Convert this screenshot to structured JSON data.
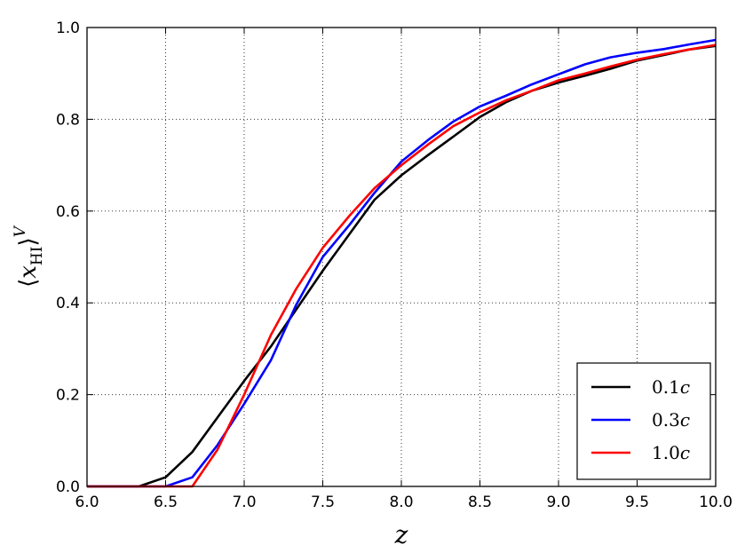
{
  "chart_data": {
    "type": "line",
    "xlabel": "z",
    "ylabel": "⟨x_HI⟩^V",
    "ylabel_parts": {
      "open": "⟨",
      "x": "x",
      "sub": "HI",
      "close": "⟩",
      "sup": "V"
    },
    "xlim": [
      6.0,
      10.0
    ],
    "ylim": [
      0.0,
      1.0
    ],
    "xticks": [
      "6.0",
      "6.5",
      "7.0",
      "7.5",
      "8.0",
      "8.5",
      "9.0",
      "9.5",
      "10.0"
    ],
    "yticks": [
      "0.0",
      "0.2",
      "0.4",
      "0.6",
      "0.8",
      "1.0"
    ],
    "grid": true,
    "grid_style": "dotted",
    "legend_position": "lower-right",
    "series": [
      {
        "name": "0.1c",
        "color": "#000000",
        "x": [
          6.0,
          6.33,
          6.5,
          6.67,
          6.83,
          7.0,
          7.17,
          7.33,
          7.5,
          7.67,
          7.83,
          8.0,
          8.17,
          8.33,
          8.5,
          8.67,
          8.83,
          9.0,
          9.17,
          9.33,
          9.5,
          9.67,
          9.83,
          10.0
        ],
        "y": [
          0.0,
          0.0,
          0.02,
          0.075,
          0.15,
          0.23,
          0.305,
          0.385,
          0.47,
          0.55,
          0.625,
          0.678,
          0.722,
          0.762,
          0.805,
          0.838,
          0.862,
          0.88,
          0.895,
          0.91,
          0.928,
          0.94,
          0.952,
          0.96
        ]
      },
      {
        "name": "0.3c",
        "color": "#0000ff",
        "x": [
          6.0,
          6.33,
          6.5,
          6.67,
          6.83,
          7.0,
          7.17,
          7.33,
          7.5,
          7.67,
          7.83,
          8.0,
          8.17,
          8.33,
          8.5,
          8.67,
          8.83,
          9.0,
          9.17,
          9.33,
          9.5,
          9.67,
          9.83,
          10.0
        ],
        "y": [
          0.0,
          0.0,
          0.0,
          0.02,
          0.09,
          0.18,
          0.275,
          0.395,
          0.5,
          0.57,
          0.64,
          0.708,
          0.755,
          0.795,
          0.828,
          0.852,
          0.876,
          0.898,
          0.92,
          0.935,
          0.945,
          0.953,
          0.963,
          0.973
        ]
      },
      {
        "name": "1.0c",
        "color": "#ff0000",
        "x": [
          6.0,
          6.33,
          6.5,
          6.67,
          6.83,
          7.0,
          7.17,
          7.33,
          7.5,
          7.67,
          7.83,
          8.0,
          8.17,
          8.33,
          8.5,
          8.67,
          8.83,
          9.0,
          9.17,
          9.33,
          9.5,
          9.67,
          9.83,
          10.0
        ],
        "y": [
          0.0,
          0.0,
          0.0,
          0.0,
          0.08,
          0.2,
          0.33,
          0.43,
          0.52,
          0.59,
          0.65,
          0.7,
          0.745,
          0.785,
          0.815,
          0.842,
          0.862,
          0.885,
          0.9,
          0.915,
          0.93,
          0.942,
          0.952,
          0.962
        ]
      }
    ],
    "legend": [
      {
        "label": "0.1c",
        "num": "0.1",
        "unit": "c",
        "color": "#000000"
      },
      {
        "label": "0.3c",
        "num": "0.3",
        "unit": "c",
        "color": "#0000ff"
      },
      {
        "label": "1.0c",
        "num": "1.0",
        "unit": "c",
        "color": "#ff0000"
      }
    ]
  }
}
